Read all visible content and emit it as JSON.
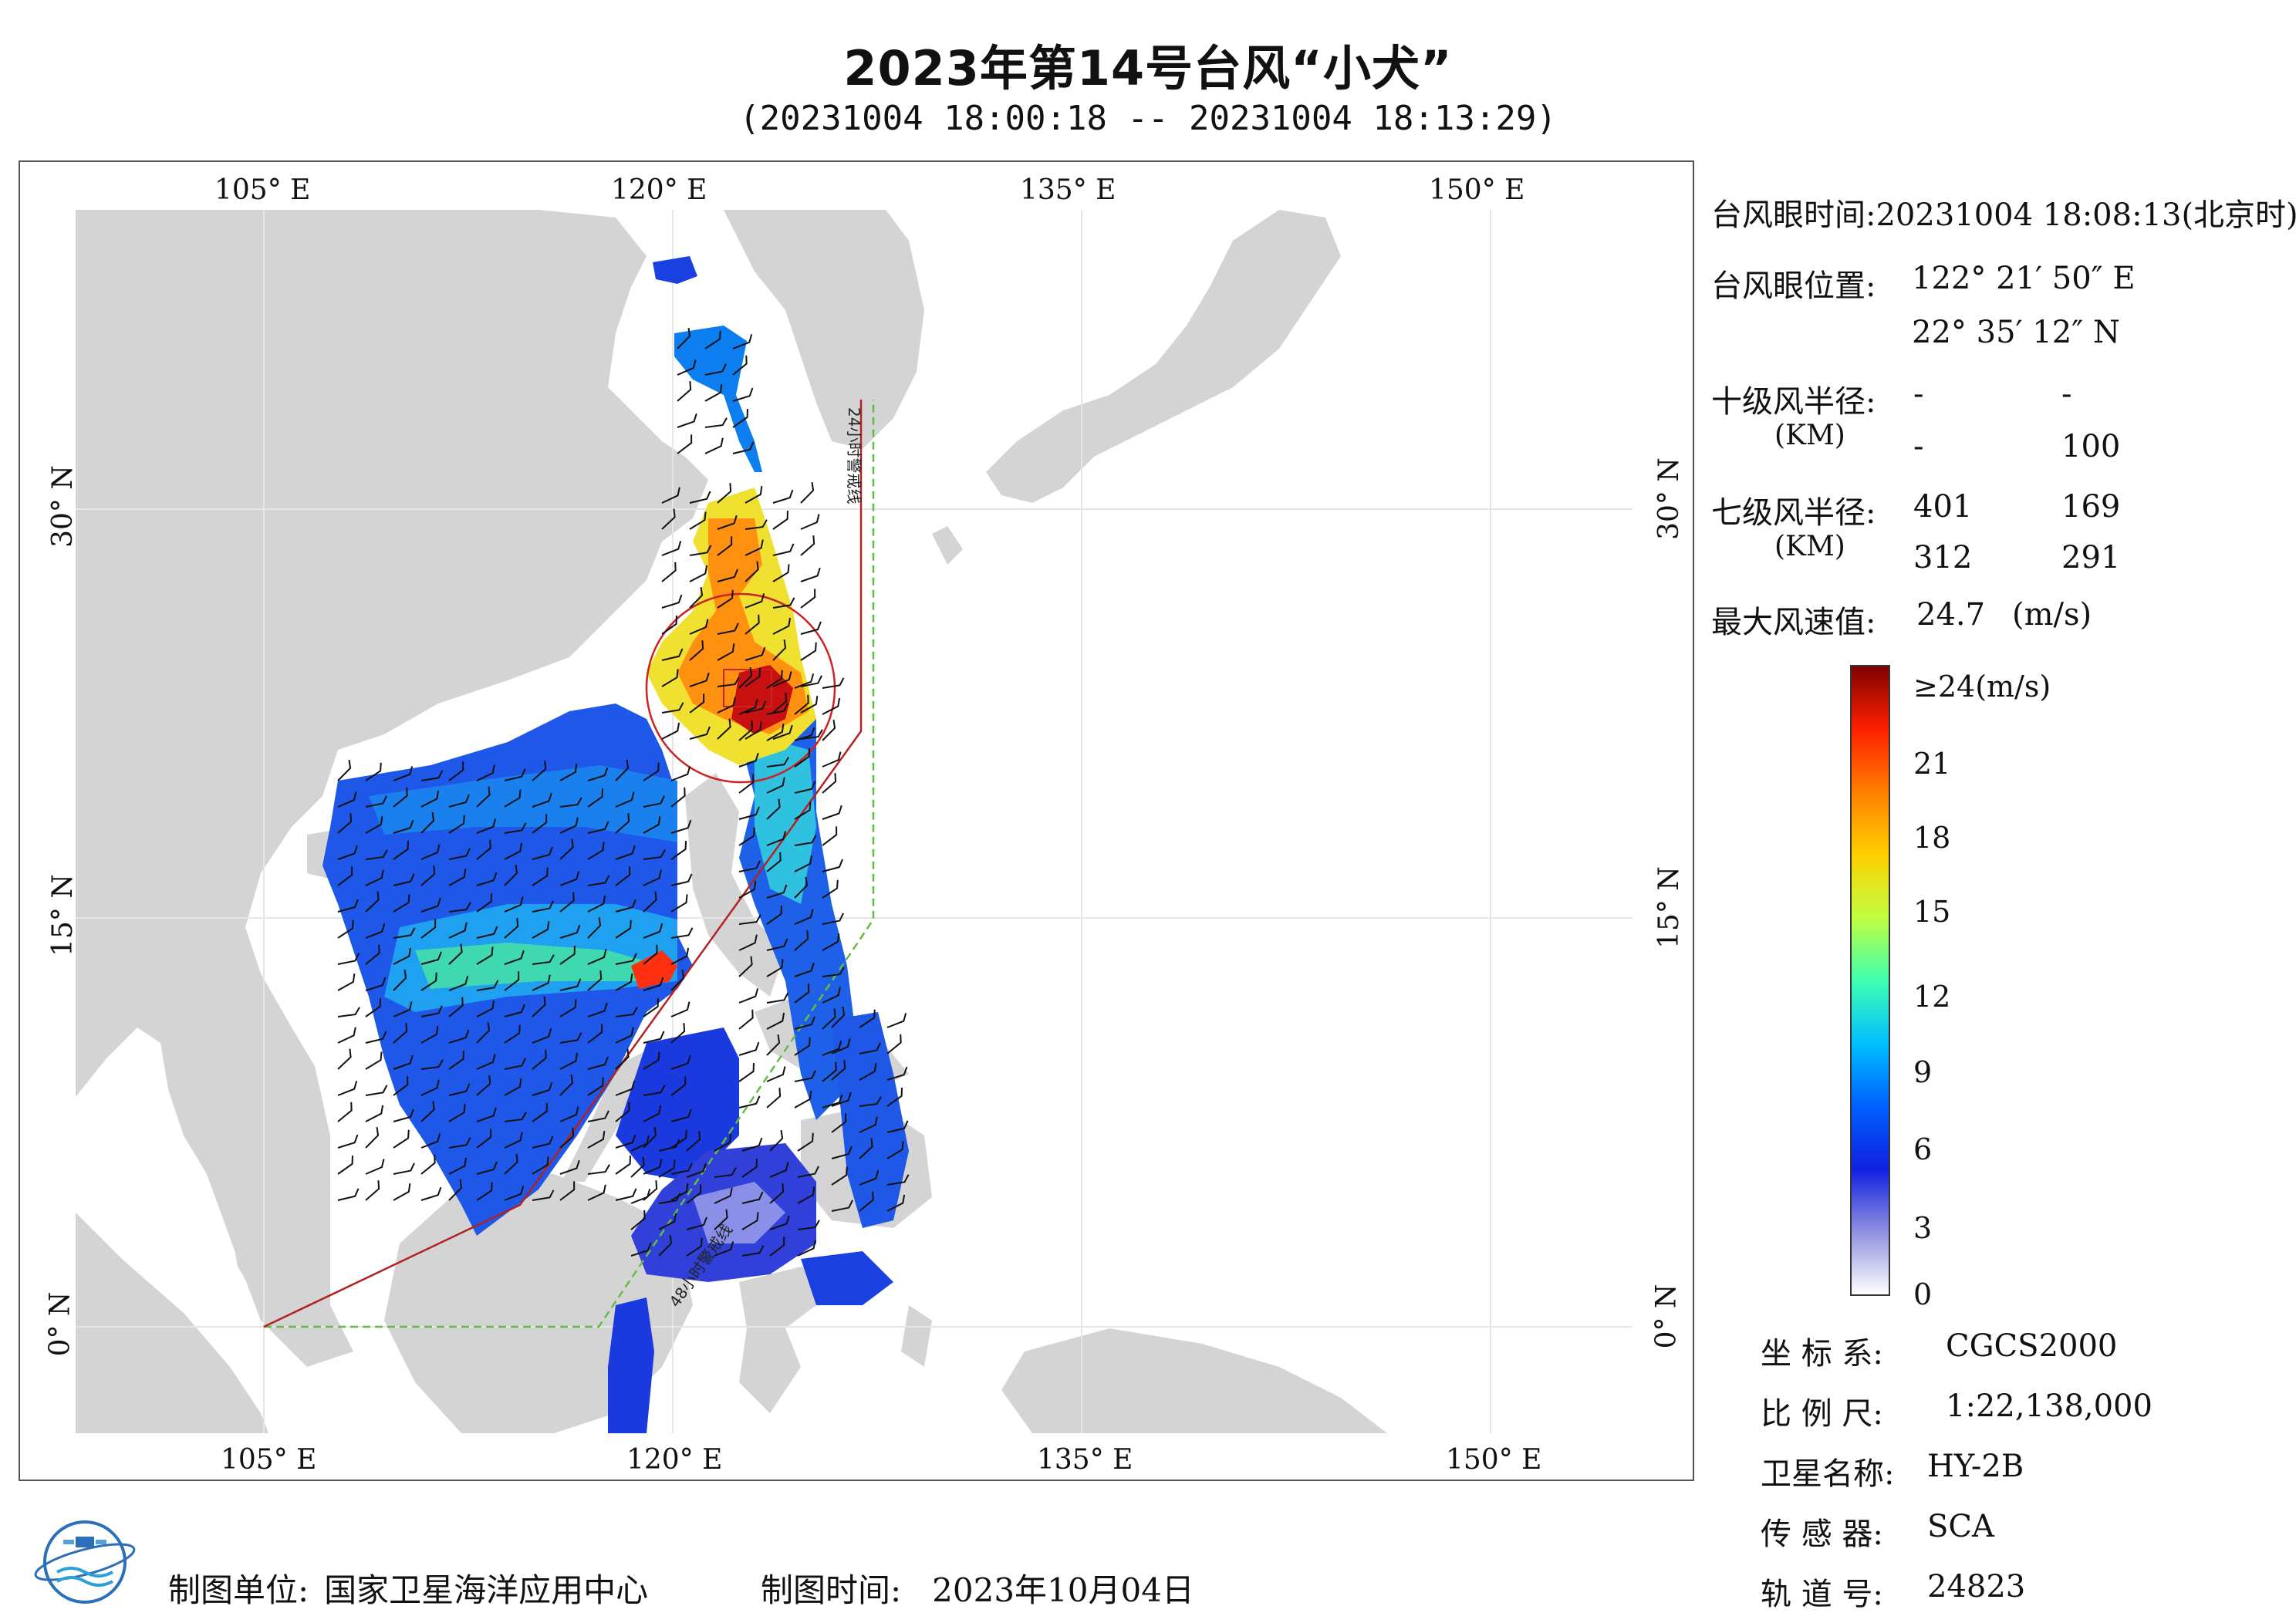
{
  "header": {
    "title": "2023年第14号台风“小犬”",
    "subtitle": "(20231004 18:00:18 -- 20231004 18:13:29)"
  },
  "map": {
    "lon_ticks_top": [
      "105° E",
      "120° E",
      "135° E",
      "150° E"
    ],
    "lon_ticks_bottom": [
      "105° E",
      "120° E",
      "135° E",
      "150° E"
    ],
    "lat_ticks_left": [
      "30° N",
      "15° N",
      "0° N"
    ],
    "lat_ticks_right": [
      "30° N",
      "15° N",
      "0° N"
    ],
    "warning_24h_label": "24小时警戒线",
    "warning_48h_label": "48小时警戒线",
    "colors": {
      "land": "#d4d4d4",
      "sea": "#ffffff",
      "warning_24h": "#b22222",
      "warning_48h": "#66bb44",
      "eye_circle": "#cc2222"
    }
  },
  "info_panel": {
    "eye_time_label": "台风眼时间:",
    "eye_time_value": "20231004 18:08:13(北京时)",
    "eye_pos_label": "台风眼位置:",
    "eye_lon": "122° 21′ 50″ E",
    "eye_lat": "22° 35′ 12″ N",
    "r10_label": "十级风半径:",
    "r10_unit": "(KM)",
    "r10_values": [
      "-",
      "-",
      "-",
      "100"
    ],
    "r7_label": "七级风半径:",
    "r7_unit": "(KM)",
    "r7_values": [
      "401",
      "169",
      "312",
      "291"
    ],
    "max_wind_label": "最大风速值:",
    "max_wind_value": "24.7",
    "max_wind_unit": "(m/s)"
  },
  "colorbar": {
    "top_label": "≥24(m/s)",
    "ticks": [
      "21",
      "18",
      "15",
      "12",
      "9",
      "6",
      "3",
      "0"
    ],
    "colors": [
      "#800000",
      "#ff2000",
      "#ff8000",
      "#ffd000",
      "#c0ff40",
      "#40ffb0",
      "#00c0ff",
      "#0060ff",
      "#1020e0",
      "#9090e0",
      "#ffffff"
    ]
  },
  "meta": {
    "crs_label": "坐 标 系:",
    "crs_value": "CGCS2000",
    "scale_label": "比 例 尺:",
    "scale_value": "1:22,138,000",
    "satellite_label": "卫星名称:",
    "satellite_value": "HY-2B",
    "sensor_label": "传 感 器:",
    "sensor_value": "SCA",
    "orbit_label": "轨 道 号:",
    "orbit_value": "24823"
  },
  "footer": {
    "unit_label": "制图单位:",
    "unit_value": "国家卫星海洋应用中心",
    "time_label": "制图时间:",
    "time_value": "2023年10月04日"
  }
}
